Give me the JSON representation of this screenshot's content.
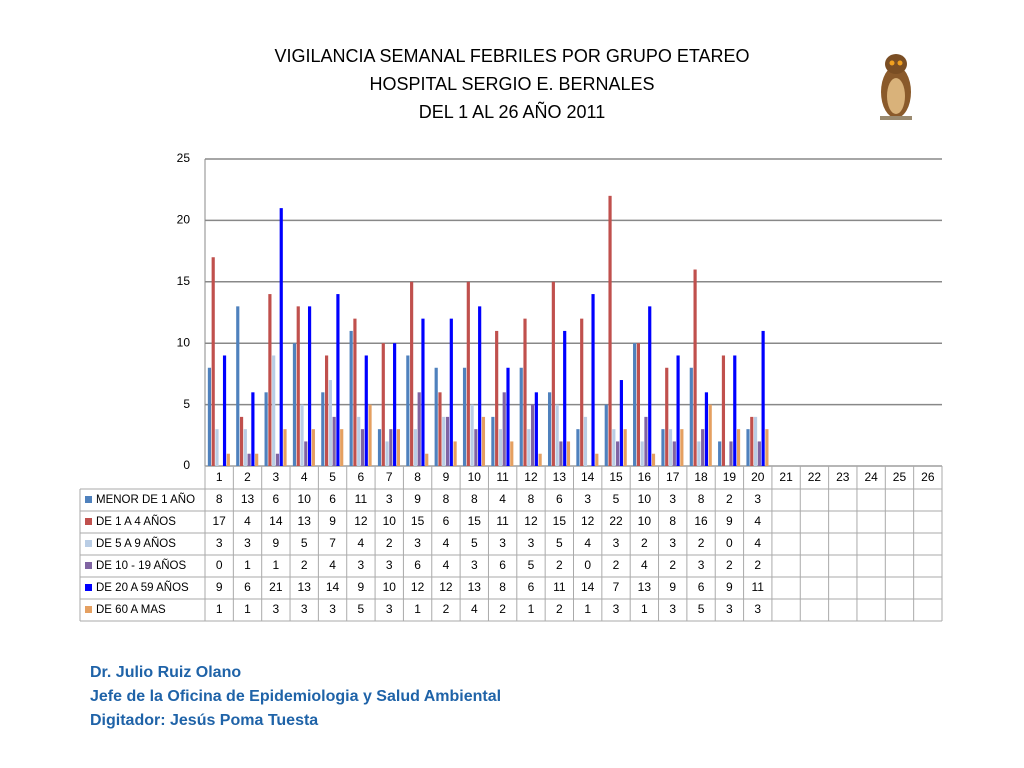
{
  "chart_data": {
    "type": "bar",
    "title": [
      "VIGILANCIA SEMANAL FEBRILES POR GRUPO ETAREO",
      "HOSPITAL SERGIO E. BERNALES",
      "DEL 1 AL 26 AÑO 2011"
    ],
    "categories": [
      "1",
      "2",
      "3",
      "4",
      "5",
      "6",
      "7",
      "8",
      "9",
      "10",
      "11",
      "12",
      "13",
      "14",
      "15",
      "16",
      "17",
      "18",
      "19",
      "20",
      "21",
      "22",
      "23",
      "24",
      "25",
      "26"
    ],
    "series": [
      {
        "name": "MENOR DE 1 AÑO",
        "color": "#4f81bd",
        "values": [
          8,
          13,
          6,
          10,
          6,
          11,
          3,
          9,
          8,
          8,
          4,
          8,
          6,
          3,
          5,
          10,
          3,
          8,
          2,
          3,
          null,
          null,
          null,
          null,
          null,
          null
        ]
      },
      {
        "name": "DE 1 A 4 AÑOS",
        "color": "#c0504d",
        "values": [
          17,
          4,
          14,
          13,
          9,
          12,
          10,
          15,
          6,
          15,
          11,
          12,
          15,
          12,
          22,
          10,
          8,
          16,
          9,
          4,
          null,
          null,
          null,
          null,
          null,
          null
        ]
      },
      {
        "name": "DE 5 A 9 AÑOS",
        "color": "#b9cde5",
        "values": [
          3,
          3,
          9,
          5,
          7,
          4,
          2,
          3,
          4,
          5,
          3,
          3,
          5,
          4,
          3,
          2,
          3,
          2,
          0,
          4,
          null,
          null,
          null,
          null,
          null,
          null
        ]
      },
      {
        "name": "DE 10 - 19 AÑOS",
        "color": "#8064a2",
        "values": [
          0,
          1,
          1,
          2,
          4,
          3,
          3,
          6,
          4,
          3,
          6,
          5,
          2,
          0,
          2,
          4,
          2,
          3,
          2,
          2,
          null,
          null,
          null,
          null,
          null,
          null
        ]
      },
      {
        "name": "DE 20 A 59 AÑOS",
        "color": "#0000ff",
        "values": [
          9,
          6,
          21,
          13,
          14,
          9,
          10,
          12,
          12,
          13,
          8,
          6,
          11,
          14,
          7,
          13,
          9,
          6,
          9,
          11,
          null,
          null,
          null,
          null,
          null,
          null
        ]
      },
      {
        "name": "DE 60 A  MAS",
        "color": "#e5a061",
        "values": [
          1,
          1,
          3,
          3,
          3,
          5,
          3,
          1,
          2,
          4,
          2,
          1,
          2,
          1,
          3,
          1,
          3,
          5,
          3,
          3,
          null,
          null,
          null,
          null,
          null,
          null
        ]
      }
    ],
    "ylim": [
      0,
      25
    ],
    "yticks": [
      0,
      5,
      10,
      15,
      20,
      25
    ],
    "grid": true
  },
  "footer": [
    "Dr.  Julio Ruiz Olano",
    "Jefe de la Oficina de Epidemiologia y  Salud Ambiental",
    "Digitador: Jesús Poma Tuesta"
  ]
}
